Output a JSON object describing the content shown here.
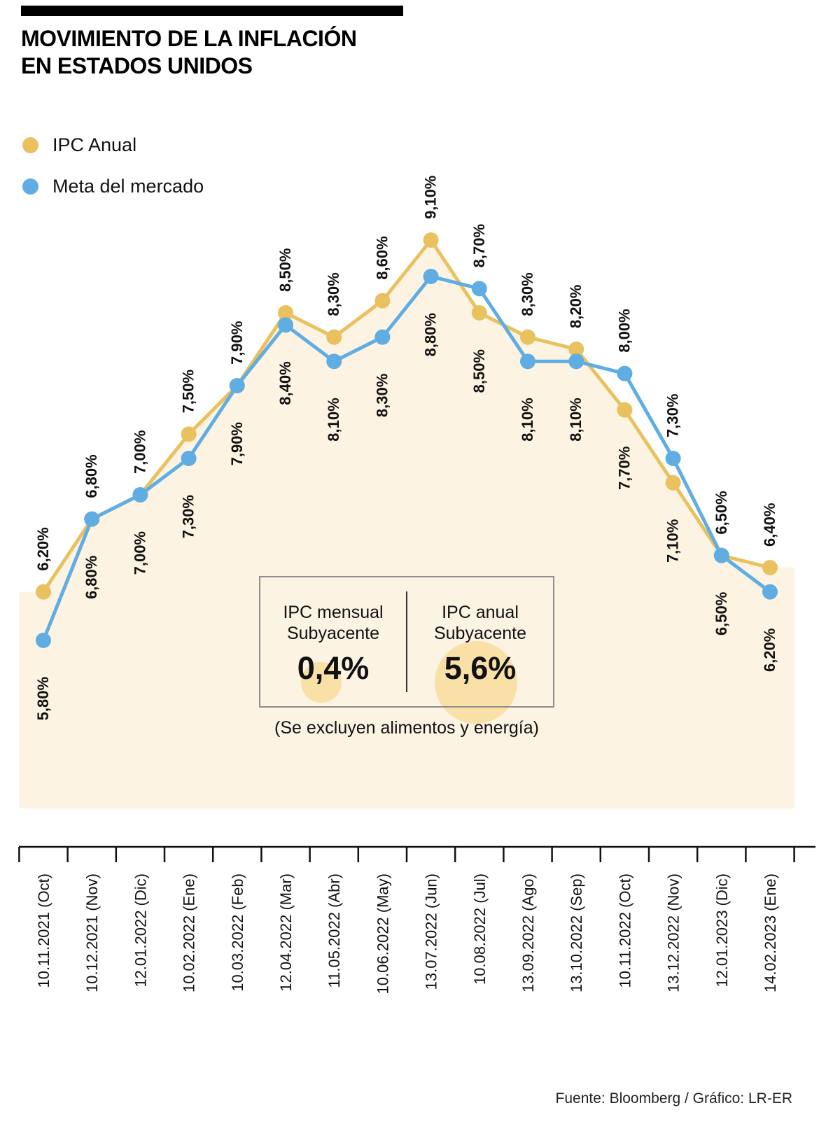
{
  "header": {
    "title_line1": "MOVIMIENTO DE LA INFLACIÓN",
    "title_line2": "EN ESTADOS UNIDOS"
  },
  "legend": [
    {
      "label": "IPC Anual",
      "color": "#E9C15F"
    },
    {
      "label": "Meta del mercado",
      "color": "#5FADE2"
    }
  ],
  "chart_data": {
    "type": "line",
    "categories": [
      "10.11.2021 (Oct)",
      "10.12.2021 (Nov)",
      "12.01.2022 (Dic)",
      "10.02.2022 (Ene)",
      "10.03.2022 (Feb)",
      "12.04.2022 (Mar)",
      "11.05.2022 (Abr)",
      "10.06.2022 (May)",
      "13.07.2022 (Jun)",
      "10.08.2022 (Jul)",
      "13.09.2022 (Ago)",
      "13.10.2022 (Sep)",
      "10.11.2022 (Oct)",
      "13.12.2022 (Nov)",
      "12.01.2023 (Dic)",
      "14.02.2023 (Ene)"
    ],
    "series": [
      {
        "name": "IPC Anual",
        "color": "#E9C15F",
        "values": [
          6.2,
          6.8,
          7.0,
          7.5,
          7.9,
          8.5,
          8.3,
          8.6,
          9.1,
          8.5,
          8.3,
          8.2,
          7.7,
          7.1,
          6.5,
          6.4
        ]
      },
      {
        "name": "Meta del mercado",
        "color": "#5FADE2",
        "values": [
          5.8,
          6.8,
          7.0,
          7.3,
          7.9,
          8.4,
          8.1,
          8.3,
          8.8,
          8.7,
          8.1,
          8.1,
          8.0,
          7.3,
          6.5,
          6.2
        ]
      }
    ],
    "value_suffix": "%",
    "decimal_separator": ",",
    "value_decimals": 2,
    "ylim": [
      5.5,
      9.6
    ],
    "grid": false,
    "legend_position": "top-left",
    "area_fill": "#FCF3E2"
  },
  "infobox": {
    "left_label_line1": "IPC mensual",
    "left_label_line2": "Subyacente",
    "left_value": "0,4%",
    "right_label_line1": "IPC anual",
    "right_label_line2": "Subyacente",
    "right_value": "5,6%",
    "note": "(Se excluyen alimentos y energía)",
    "highlight_color": "#F8E0A6"
  },
  "footer": {
    "source": "Fuente: Bloomberg  / Gráfico: LR-ER"
  }
}
